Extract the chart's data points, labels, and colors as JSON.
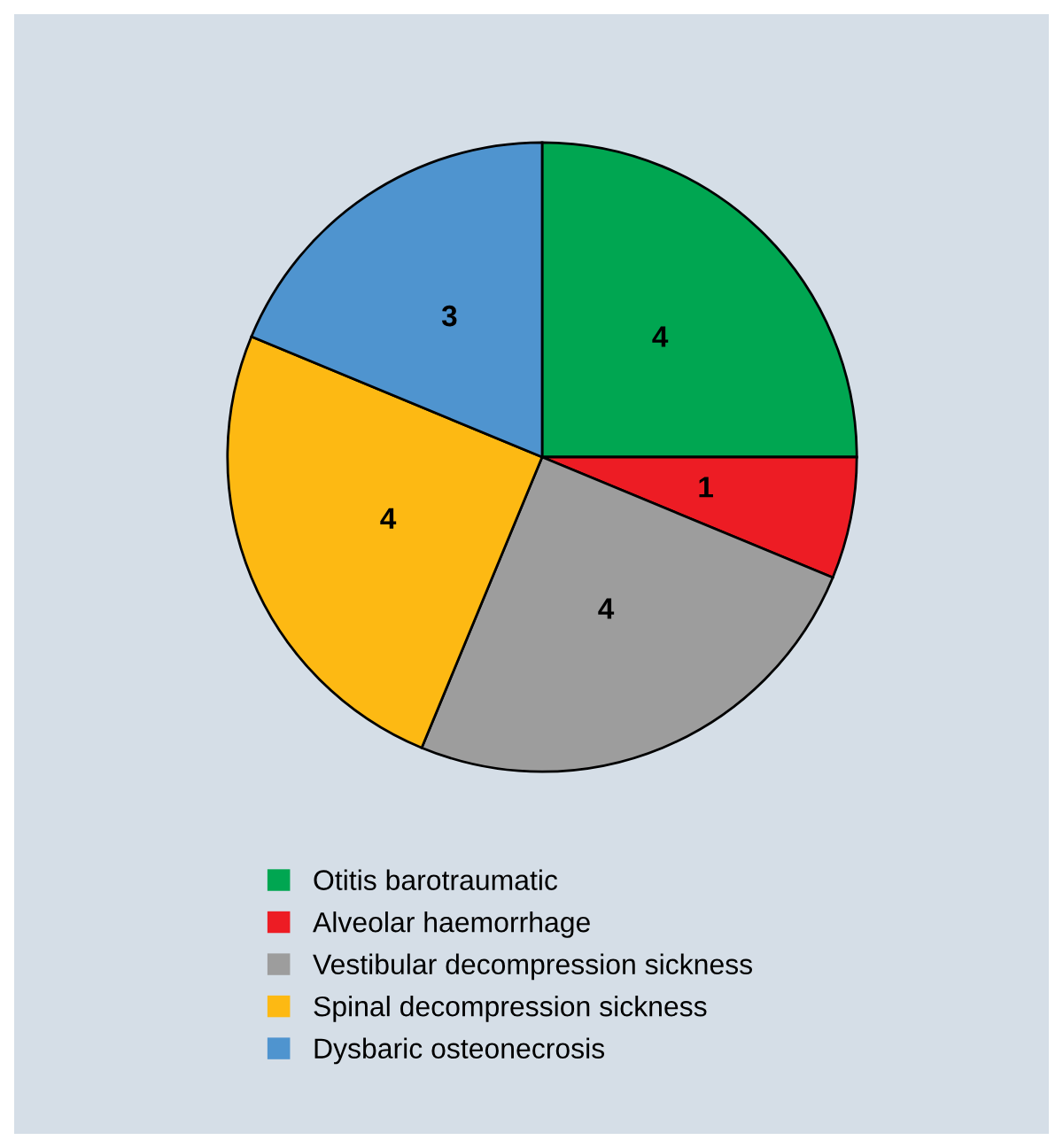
{
  "chart_data": {
    "type": "pie",
    "categories": [
      "Otitis barotraumatic",
      "Alveolar haemorrhage",
      "Vestibular decompression sickness",
      "Spinal decompression sickness",
      "Dysbaric osteonecrosis"
    ],
    "values": [
      4,
      1,
      4,
      4,
      3
    ],
    "colors": [
      "#00a651",
      "#ed1c24",
      "#9d9d9d",
      "#fdb913",
      "#4f94cf"
    ],
    "data_labels": true,
    "legend": "bottom"
  }
}
